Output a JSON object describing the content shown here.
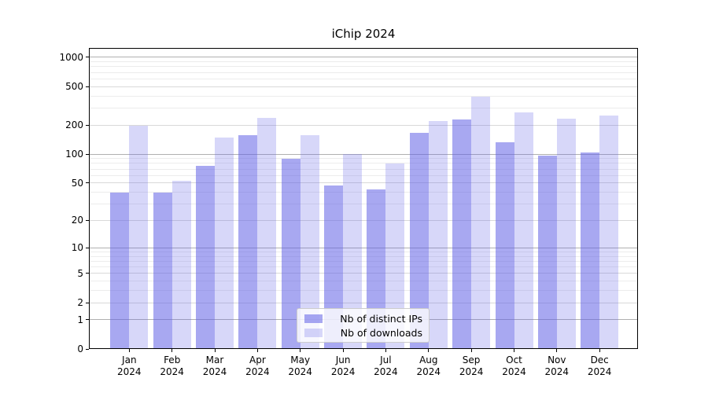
{
  "chart_data": {
    "type": "bar",
    "title": "iChip 2024",
    "categories": [
      "Jan 2024",
      "Feb 2024",
      "Mar 2024",
      "Apr 2024",
      "May 2024",
      "Jun 2024",
      "Jul 2024",
      "Aug 2024",
      "Sep 2024",
      "Oct 2024",
      "Nov 2024",
      "Dec 2024"
    ],
    "series": [
      {
        "name": "Nb of distinct IPs",
        "color": "rgba(97,97,230,0.55)",
        "values": [
          40,
          40,
          75,
          156,
          90,
          47,
          43,
          165,
          228,
          134,
          96,
          105
        ]
      },
      {
        "name": "Nb of downloads",
        "color": "rgba(97,97,230,0.25)",
        "values": [
          198,
          53,
          150,
          239,
          158,
          100,
          80,
          222,
          392,
          273,
          232,
          249
        ]
      }
    ],
    "xlabel": "",
    "ylabel": "",
    "yscale": "log1p (symlog-like, y ~ log10(value+1))",
    "ylim": [
      0,
      1255
    ],
    "yticks": [
      0,
      1,
      2,
      5,
      10,
      20,
      50,
      100,
      200,
      500,
      1000
    ],
    "yticks_minor": [
      3,
      4,
      6,
      7,
      8,
      9,
      30,
      40,
      60,
      70,
      80,
      90,
      300,
      400,
      600,
      700,
      800,
      900
    ],
    "grid": true,
    "legend_position": "lower center"
  },
  "legend": {
    "items": [
      {
        "label": "Nb of distinct IPs"
      },
      {
        "label": "Nb of downloads"
      }
    ]
  },
  "colors": {
    "bar_dark": "rgba(97,97,230,0.55)",
    "bar_light": "rgba(97,97,230,0.25)",
    "grid_major_pow10": "#b0b0b0",
    "grid_major": "#d9d9d9",
    "grid_minor": "#ececec",
    "spine": "#000000",
    "legend_border": "#cccccc",
    "legend_bg": "rgba(255,255,255,0.8)"
  }
}
